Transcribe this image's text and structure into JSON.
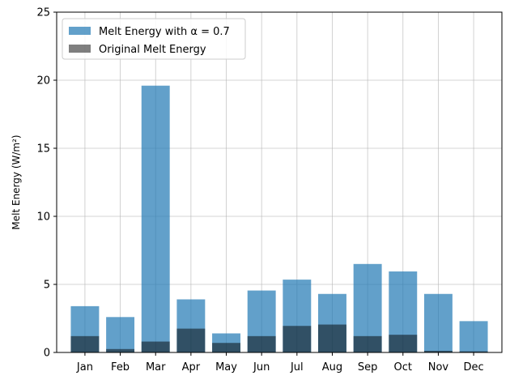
{
  "chart_data": {
    "type": "bar",
    "categories": [
      "Jan",
      "Feb",
      "Mar",
      "Apr",
      "May",
      "Jun",
      "Jul",
      "Aug",
      "Sep",
      "Oct",
      "Nov",
      "Dec"
    ],
    "series": [
      {
        "name": "Melt Energy with α = 0.7",
        "color": "#1f77b4",
        "opacity": 0.7,
        "values": [
          3.4,
          2.6,
          19.6,
          3.9,
          1.4,
          4.55,
          5.35,
          4.3,
          6.5,
          5.95,
          4.3,
          2.3
        ]
      },
      {
        "name": "Original Melt Energy",
        "color": "#000000",
        "opacity": 0.5,
        "values": [
          1.2,
          0.25,
          0.8,
          1.75,
          0.7,
          1.2,
          1.95,
          2.05,
          1.2,
          1.3,
          0.12,
          0.08
        ]
      }
    ],
    "ylabel": "Melt Energy (W/m²)",
    "ylim": [
      0,
      25
    ],
    "yticks": [
      0,
      5,
      10,
      15,
      20,
      25
    ],
    "grid": true,
    "legend_position": "top-left"
  }
}
